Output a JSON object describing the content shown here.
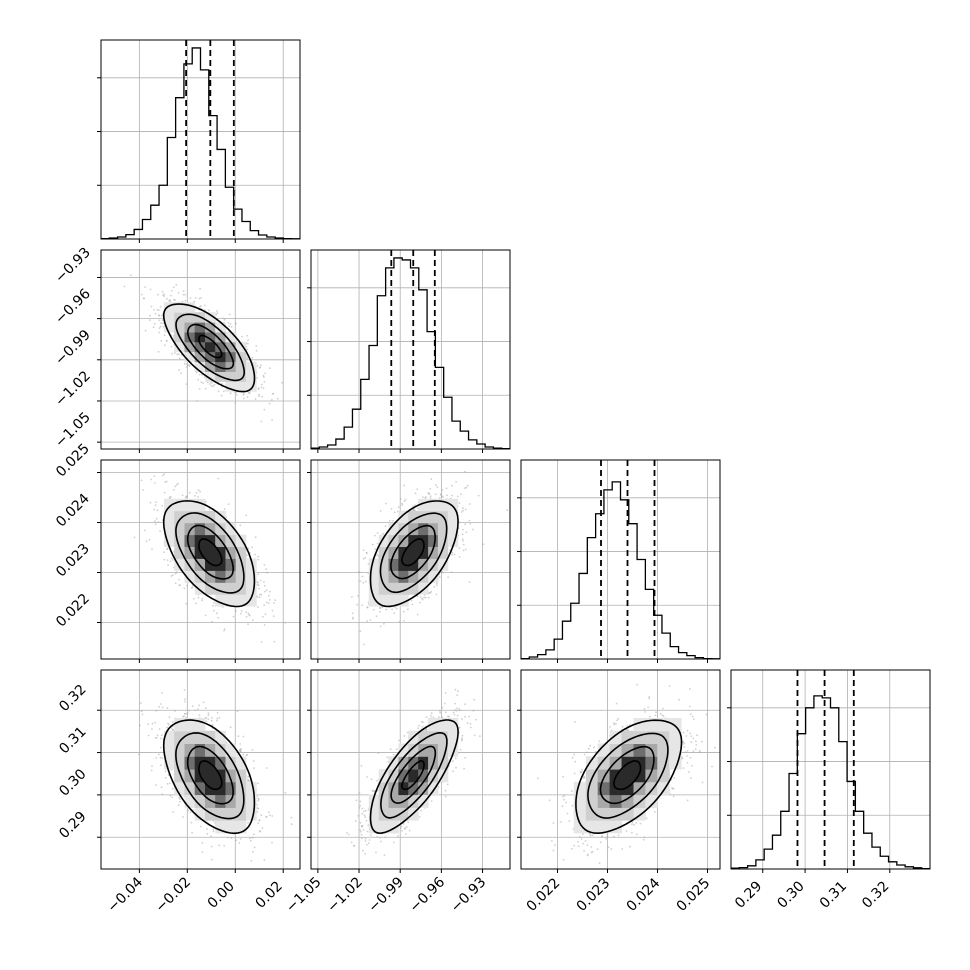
{
  "chart_data": {
    "type": "corner",
    "parameters": [
      {
        "range": [
          -0.056,
          0.027
        ],
        "ticks": [
          -0.04,
          -0.02,
          0.0,
          0.02
        ],
        "tick_labels": [
          "−0.04",
          "−0.02",
          "0.00",
          "0.02"
        ],
        "quantiles": [
          -0.0205,
          -0.0104,
          -0.0006
        ],
        "mean": -0.0105,
        "sd": 0.0095
      },
      {
        "range": [
          -1.055,
          -0.91
        ],
        "ticks": [
          -1.05,
          -1.02,
          -0.99,
          -0.96,
          -0.93
        ],
        "tick_labels": [
          "−1.05",
          "−1.02",
          "−0.99",
          "−0.96",
          "−0.93"
        ],
        "quantiles": [
          -0.9965,
          -0.9805,
          -0.9648
        ],
        "mean": -0.9805,
        "sd": 0.016
      },
      {
        "range": [
          0.02127,
          0.02525
        ],
        "ticks": [
          0.022,
          0.023,
          0.024,
          0.025
        ],
        "tick_labels": [
          "0.022",
          "0.023",
          "0.024",
          "0.025"
        ],
        "quantiles": [
          0.02287,
          0.0234,
          0.02394
        ],
        "mean": 0.0234,
        "sd": 0.00053
      },
      {
        "range": [
          0.2825,
          0.3295
        ],
        "ticks": [
          0.29,
          0.3,
          0.31,
          0.32
        ],
        "tick_labels": [
          "0.29",
          "0.30",
          "0.31",
          "0.32"
        ],
        "quantiles": [
          0.2982,
          0.3046,
          0.3115
        ],
        "mean": 0.3046,
        "sd": 0.0067
      }
    ],
    "histograms": [
      [
        0.002,
        0.005,
        0.01,
        0.022,
        0.048,
        0.098,
        0.17,
        0.27,
        0.51,
        0.71,
        0.88,
        0.96,
        0.85,
        0.62,
        0.45,
        0.26,
        0.15,
        0.088,
        0.042,
        0.02,
        0.01,
        0.005,
        0.002,
        0.001
      ],
      [
        0.004,
        0.01,
        0.02,
        0.05,
        0.11,
        0.2,
        0.35,
        0.52,
        0.77,
        0.91,
        0.96,
        0.95,
        0.91,
        0.8,
        0.59,
        0.41,
        0.26,
        0.14,
        0.09,
        0.046,
        0.025,
        0.01,
        0.004,
        0.002
      ],
      [
        0.002,
        0.01,
        0.022,
        0.046,
        0.1,
        0.19,
        0.28,
        0.43,
        0.61,
        0.73,
        0.85,
        0.89,
        0.8,
        0.68,
        0.5,
        0.35,
        0.22,
        0.13,
        0.062,
        0.032,
        0.017,
        0.007,
        0.002,
        0.001
      ],
      [
        0.004,
        0.007,
        0.016,
        0.046,
        0.1,
        0.17,
        0.29,
        0.48,
        0.68,
        0.81,
        0.87,
        0.86,
        0.81,
        0.64,
        0.44,
        0.29,
        0.18,
        0.11,
        0.064,
        0.036,
        0.02,
        0.011,
        0.006,
        0.002
      ]
    ],
    "correlations": {
      "1,0": -0.7,
      "2,0": -0.55,
      "2,1": 0.55,
      "3,0": -0.5,
      "3,1": 0.75,
      "3,2": 0.55
    },
    "contour_levels": [
      0.5,
      1.0,
      1.5,
      2.0
    ],
    "grid": true,
    "colors": {
      "axes": "#000000",
      "grid": "#b0b0b0",
      "scatter": "#aaaaaa",
      "hist": "#000000"
    }
  }
}
